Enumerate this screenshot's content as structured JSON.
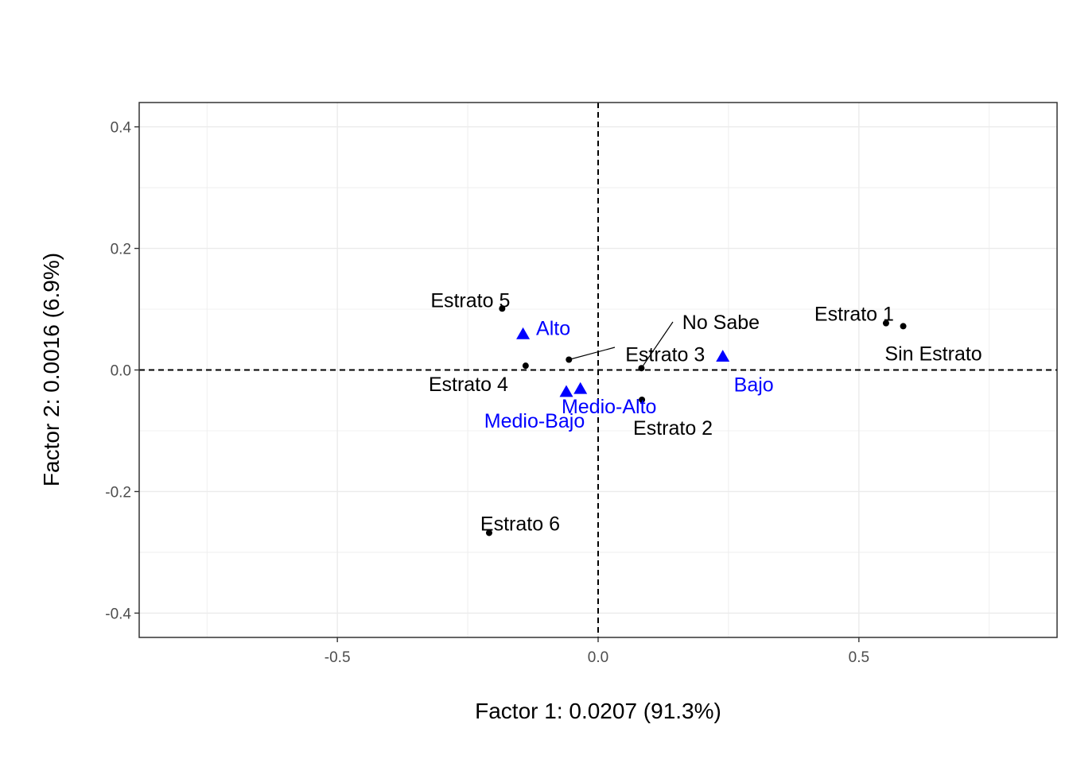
{
  "chart_data": {
    "type": "scatter",
    "title": "",
    "xlabel": "Factor 1: 0.0207 (91.3%)",
    "ylabel": "Factor 2: 0.0016 (6.9%)",
    "xlim": [
      -0.88,
      0.88
    ],
    "ylim": [
      -0.44,
      0.44
    ],
    "x_ticks": [
      -0.5,
      0.0,
      0.5
    ],
    "x_tick_labels": [
      "-0.5",
      "0.0",
      "0.5"
    ],
    "y_ticks": [
      -0.4,
      -0.2,
      0.0,
      0.2,
      0.4
    ],
    "y_tick_labels": [
      "-0.4",
      "-0.2",
      "0.0",
      "0.2",
      "0.4"
    ],
    "grid": true,
    "reference_lines": {
      "x": 0,
      "y": 0,
      "style": "dashed"
    },
    "colors": {
      "row_points": "#000000",
      "column_points": "#0000ff",
      "grid": "#ebebeb",
      "panel_border": "#333333"
    },
    "series": [
      {
        "marker": "circle",
        "color": "#000000",
        "points": [
          {
            "label": "Estrato 1",
            "x": 0.552,
            "y": 0.077
          },
          {
            "label": "Sin Estrato",
            "x": 0.585,
            "y": 0.072
          },
          {
            "label": "Estrato 2",
            "x": 0.084,
            "y": -0.049
          },
          {
            "label": "No Sabe",
            "x": 0.083,
            "y": 0.003
          },
          {
            "label": "Estrato 3",
            "x": -0.056,
            "y": 0.017
          },
          {
            "label": "Estrato 4",
            "x": -0.139,
            "y": 0.007
          },
          {
            "label": "Estrato 5",
            "x": -0.184,
            "y": 0.101
          },
          {
            "label": "Estrato 6",
            "x": -0.209,
            "y": -0.268
          }
        ]
      },
      {
        "marker": "triangle",
        "color": "#0000ff",
        "points": [
          {
            "label": "Alto",
            "x": -0.144,
            "y": 0.059
          },
          {
            "label": "Medio-Alto",
            "x": -0.034,
            "y": -0.031
          },
          {
            "label": "Medio-Bajo",
            "x": -0.061,
            "y": -0.036
          },
          {
            "label": "Bajo",
            "x": 0.239,
            "y": 0.022
          }
        ]
      }
    ]
  }
}
